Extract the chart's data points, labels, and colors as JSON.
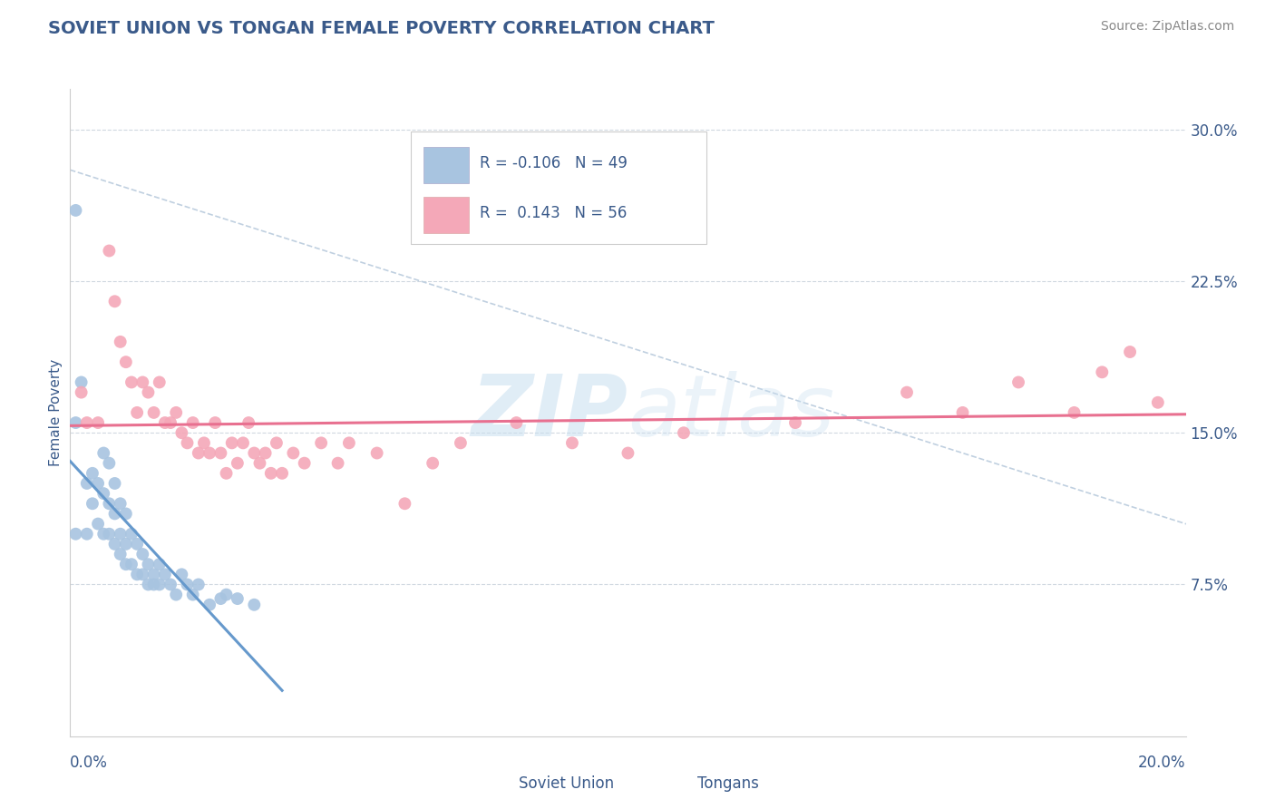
{
  "title": "SOVIET UNION VS TONGAN FEMALE POVERTY CORRELATION CHART",
  "source": "Source: ZipAtlas.com",
  "ylabel": "Female Poverty",
  "xlim": [
    0.0,
    0.2
  ],
  "ylim": [
    0.0,
    0.32
  ],
  "yticks_right": [
    0.075,
    0.15,
    0.225,
    0.3
  ],
  "ytick_labels_right": [
    "7.5%",
    "15.0%",
    "22.5%",
    "30.0%"
  ],
  "soviet_color": "#a8c4e0",
  "tongan_color": "#f4a8b8",
  "soviet_line_color": "#6699cc",
  "tongan_line_color": "#e87090",
  "title_color": "#3a5a8a",
  "tick_color": "#3a5a8a",
  "background_color": "#ffffff",
  "watermark_color": "#daeef8",
  "soviet_data_x": [
    0.001,
    0.001,
    0.002,
    0.003,
    0.003,
    0.004,
    0.004,
    0.005,
    0.005,
    0.006,
    0.006,
    0.006,
    0.007,
    0.007,
    0.007,
    0.008,
    0.008,
    0.008,
    0.009,
    0.009,
    0.009,
    0.01,
    0.01,
    0.01,
    0.011,
    0.011,
    0.012,
    0.012,
    0.013,
    0.013,
    0.014,
    0.014,
    0.015,
    0.015,
    0.016,
    0.016,
    0.017,
    0.018,
    0.019,
    0.02,
    0.021,
    0.022,
    0.023,
    0.025,
    0.027,
    0.028,
    0.03,
    0.033,
    0.001
  ],
  "soviet_data_y": [
    0.155,
    0.1,
    0.175,
    0.125,
    0.1,
    0.13,
    0.115,
    0.125,
    0.105,
    0.14,
    0.12,
    0.1,
    0.135,
    0.115,
    0.1,
    0.125,
    0.11,
    0.095,
    0.115,
    0.1,
    0.09,
    0.11,
    0.095,
    0.085,
    0.1,
    0.085,
    0.095,
    0.08,
    0.09,
    0.08,
    0.085,
    0.075,
    0.08,
    0.075,
    0.085,
    0.075,
    0.08,
    0.075,
    0.07,
    0.08,
    0.075,
    0.07,
    0.075,
    0.065,
    0.068,
    0.07,
    0.068,
    0.065,
    0.26
  ],
  "tongan_data_x": [
    0.002,
    0.003,
    0.005,
    0.007,
    0.008,
    0.009,
    0.01,
    0.011,
    0.012,
    0.013,
    0.014,
    0.015,
    0.016,
    0.017,
    0.018,
    0.019,
    0.02,
    0.021,
    0.022,
    0.023,
    0.024,
    0.025,
    0.026,
    0.027,
    0.028,
    0.029,
    0.03,
    0.031,
    0.032,
    0.033,
    0.034,
    0.035,
    0.036,
    0.037,
    0.038,
    0.04,
    0.042,
    0.045,
    0.048,
    0.05,
    0.055,
    0.06,
    0.065,
    0.07,
    0.08,
    0.09,
    0.1,
    0.11,
    0.13,
    0.15,
    0.16,
    0.17,
    0.18,
    0.185,
    0.19,
    0.195
  ],
  "tongan_data_y": [
    0.17,
    0.155,
    0.155,
    0.24,
    0.215,
    0.195,
    0.185,
    0.175,
    0.16,
    0.175,
    0.17,
    0.16,
    0.175,
    0.155,
    0.155,
    0.16,
    0.15,
    0.145,
    0.155,
    0.14,
    0.145,
    0.14,
    0.155,
    0.14,
    0.13,
    0.145,
    0.135,
    0.145,
    0.155,
    0.14,
    0.135,
    0.14,
    0.13,
    0.145,
    0.13,
    0.14,
    0.135,
    0.145,
    0.135,
    0.145,
    0.14,
    0.115,
    0.135,
    0.145,
    0.155,
    0.145,
    0.14,
    0.15,
    0.155,
    0.17,
    0.16,
    0.175,
    0.16,
    0.18,
    0.19,
    0.165
  ]
}
